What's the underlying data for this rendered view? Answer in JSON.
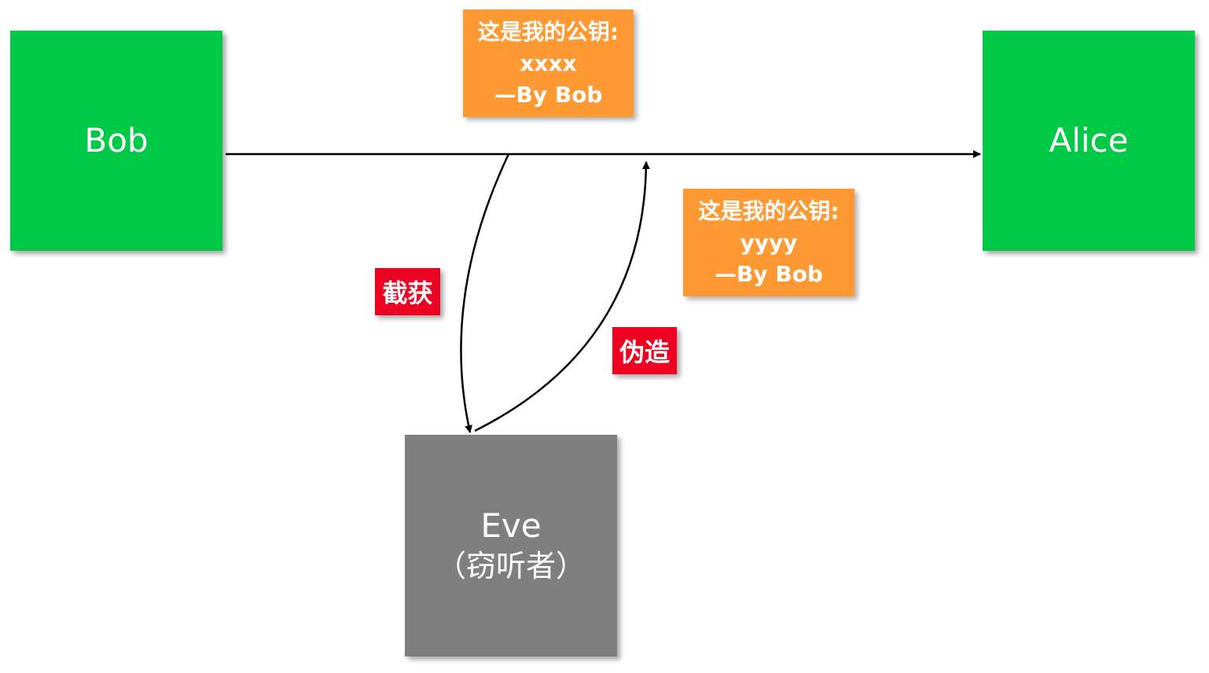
{
  "nodes": {
    "bob": {
      "label": "Bob"
    },
    "alice": {
      "label": "Alice"
    },
    "eve": {
      "label": "Eve",
      "sublabel": "（窃听者）"
    }
  },
  "messages": {
    "original": {
      "line1": "这是我的公钥:",
      "line2": "xxxx",
      "line3": "—By  Bob"
    },
    "forged": {
      "line1": "这是我的公钥:",
      "line2": "yyyy",
      "line3": "—By  Bob"
    }
  },
  "tags": {
    "intercept": "截获",
    "forge": "伪造"
  },
  "colors": {
    "party": "#00c947",
    "eavesdropper": "#7f7f7f",
    "message": "#ff9933",
    "tag": "#ee0022"
  }
}
